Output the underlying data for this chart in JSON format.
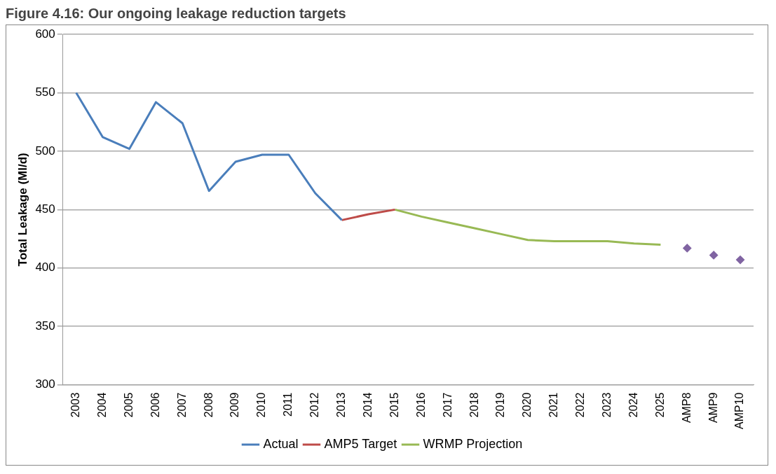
{
  "chart_data": {
    "type": "line",
    "title": "Figure 4.16: Our ongoing leakage reduction targets",
    "ylabel": "Total Leakage (Ml/d)",
    "categories": [
      "2003",
      "2004",
      "2005",
      "2006",
      "2007",
      "2008",
      "2009",
      "2010",
      "2011",
      "2012",
      "2013",
      "2014",
      "2015",
      "2016",
      "2017",
      "2018",
      "2019",
      "2020",
      "2021",
      "2022",
      "2023",
      "2024",
      "2025",
      "AMP8",
      "AMP9",
      "AMP10"
    ],
    "series": [
      {
        "name": "Actual",
        "color": "#4a7ebb",
        "marker": "none",
        "values": [
          550,
          512,
          502,
          542,
          524,
          466,
          491,
          497,
          497,
          464,
          441,
          null,
          null,
          null,
          null,
          null,
          null,
          null,
          null,
          null,
          null,
          null,
          null,
          null,
          null,
          null
        ]
      },
      {
        "name": "AMP5 Target",
        "color": "#be4b48",
        "marker": "none",
        "values": [
          null,
          null,
          null,
          null,
          null,
          null,
          null,
          null,
          null,
          null,
          441,
          446,
          450,
          null,
          null,
          null,
          null,
          null,
          null,
          null,
          null,
          null,
          null,
          null,
          null,
          null
        ]
      },
      {
        "name": "WRMP Projection",
        "color": "#98b954",
        "marker": "none",
        "values": [
          null,
          null,
          null,
          null,
          null,
          null,
          null,
          null,
          null,
          null,
          null,
          null,
          450,
          444,
          439,
          434,
          429,
          424,
          423,
          423,
          423,
          421,
          420,
          null,
          null,
          null
        ]
      },
      {
        "type": "scatter",
        "color": "#8064a2",
        "marker": "diamond",
        "values": [
          null,
          null,
          null,
          null,
          null,
          null,
          null,
          null,
          null,
          null,
          null,
          null,
          null,
          null,
          null,
          null,
          null,
          null,
          null,
          null,
          null,
          null,
          null,
          417,
          411,
          407
        ]
      }
    ],
    "ylim": [
      300,
      600
    ],
    "yticks": [
      300,
      350,
      400,
      450,
      500,
      550,
      600
    ],
    "grid": "y",
    "legend": "bottom"
  }
}
